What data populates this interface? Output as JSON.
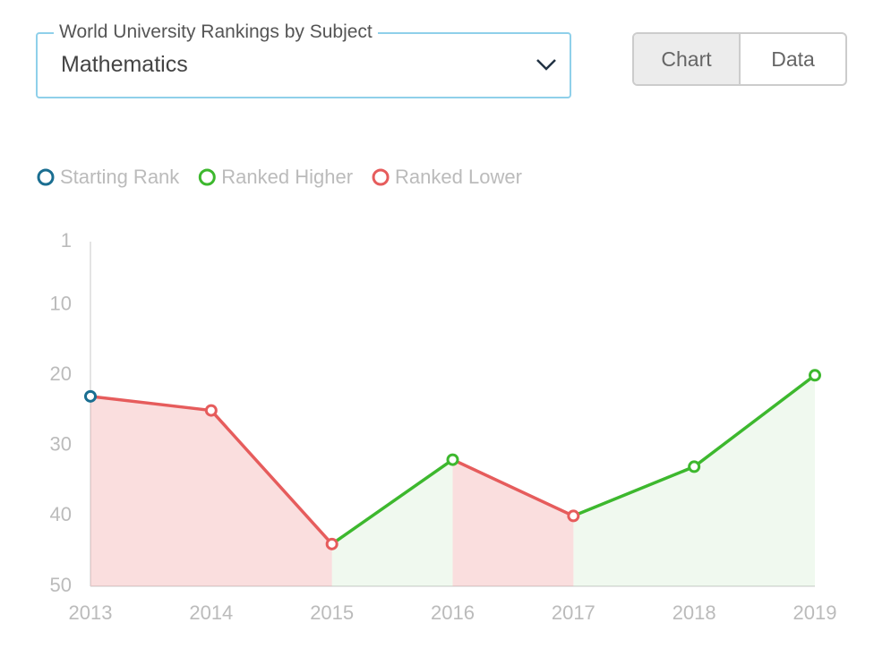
{
  "selector": {
    "label": "World University Rankings by Subject",
    "value": "Mathematics"
  },
  "view_toggle": {
    "options": [
      "Chart",
      "Data"
    ],
    "selected": "Chart"
  },
  "chart_data": {
    "type": "line",
    "legend": [
      {
        "name": "Starting Rank",
        "color": "#1a6e91"
      },
      {
        "name": "Ranked Higher",
        "color": "#3db82e"
      },
      {
        "name": "Ranked Lower",
        "color": "#e65c5c"
      }
    ],
    "categories": [
      "2013",
      "2014",
      "2015",
      "2016",
      "2017",
      "2018",
      "2019"
    ],
    "values": [
      23,
      25,
      44,
      32,
      40,
      33,
      20
    ],
    "ylim": [
      50,
      1
    ],
    "yticks": [
      1,
      10,
      20,
      30,
      40,
      50
    ]
  }
}
